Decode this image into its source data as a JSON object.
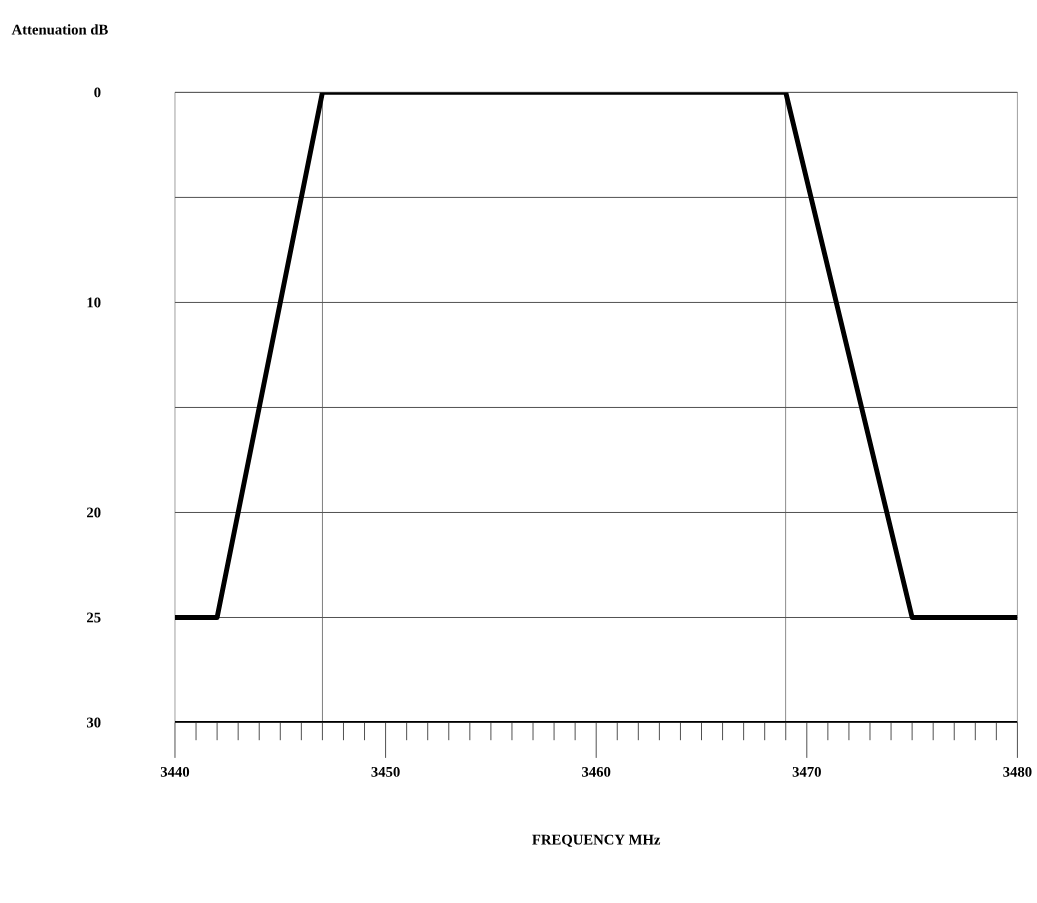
{
  "chart_data": {
    "type": "line",
    "xlabel": "FREQUENCY   MHz",
    "ylabel": "Attenuation dB",
    "series": [
      {
        "color": "#000000",
        "x": [
          3440,
          3442,
          3447,
          3469,
          3475,
          3480
        ],
        "values": [
          25,
          25,
          0,
          0,
          25,
          25
        ]
      }
    ],
    "xlim": [
      3440,
      3480
    ],
    "xticks": [
      3440,
      3450,
      3460,
      3470,
      3480
    ],
    "ylim": [
      30,
      0
    ],
    "yticks": [
      0,
      {
        "value": 5,
        "label": null
      },
      10,
      {
        "value": 15,
        "label": null
      },
      20,
      25,
      30
    ],
    "grid": "y",
    "marker": "none",
    "line_style": "solid",
    "ref_lines": [
      {
        "axis": "x",
        "value": 3447,
        "color": "#555555"
      },
      {
        "axis": "x",
        "value": 3469,
        "color": "#555555"
      }
    ]
  }
}
